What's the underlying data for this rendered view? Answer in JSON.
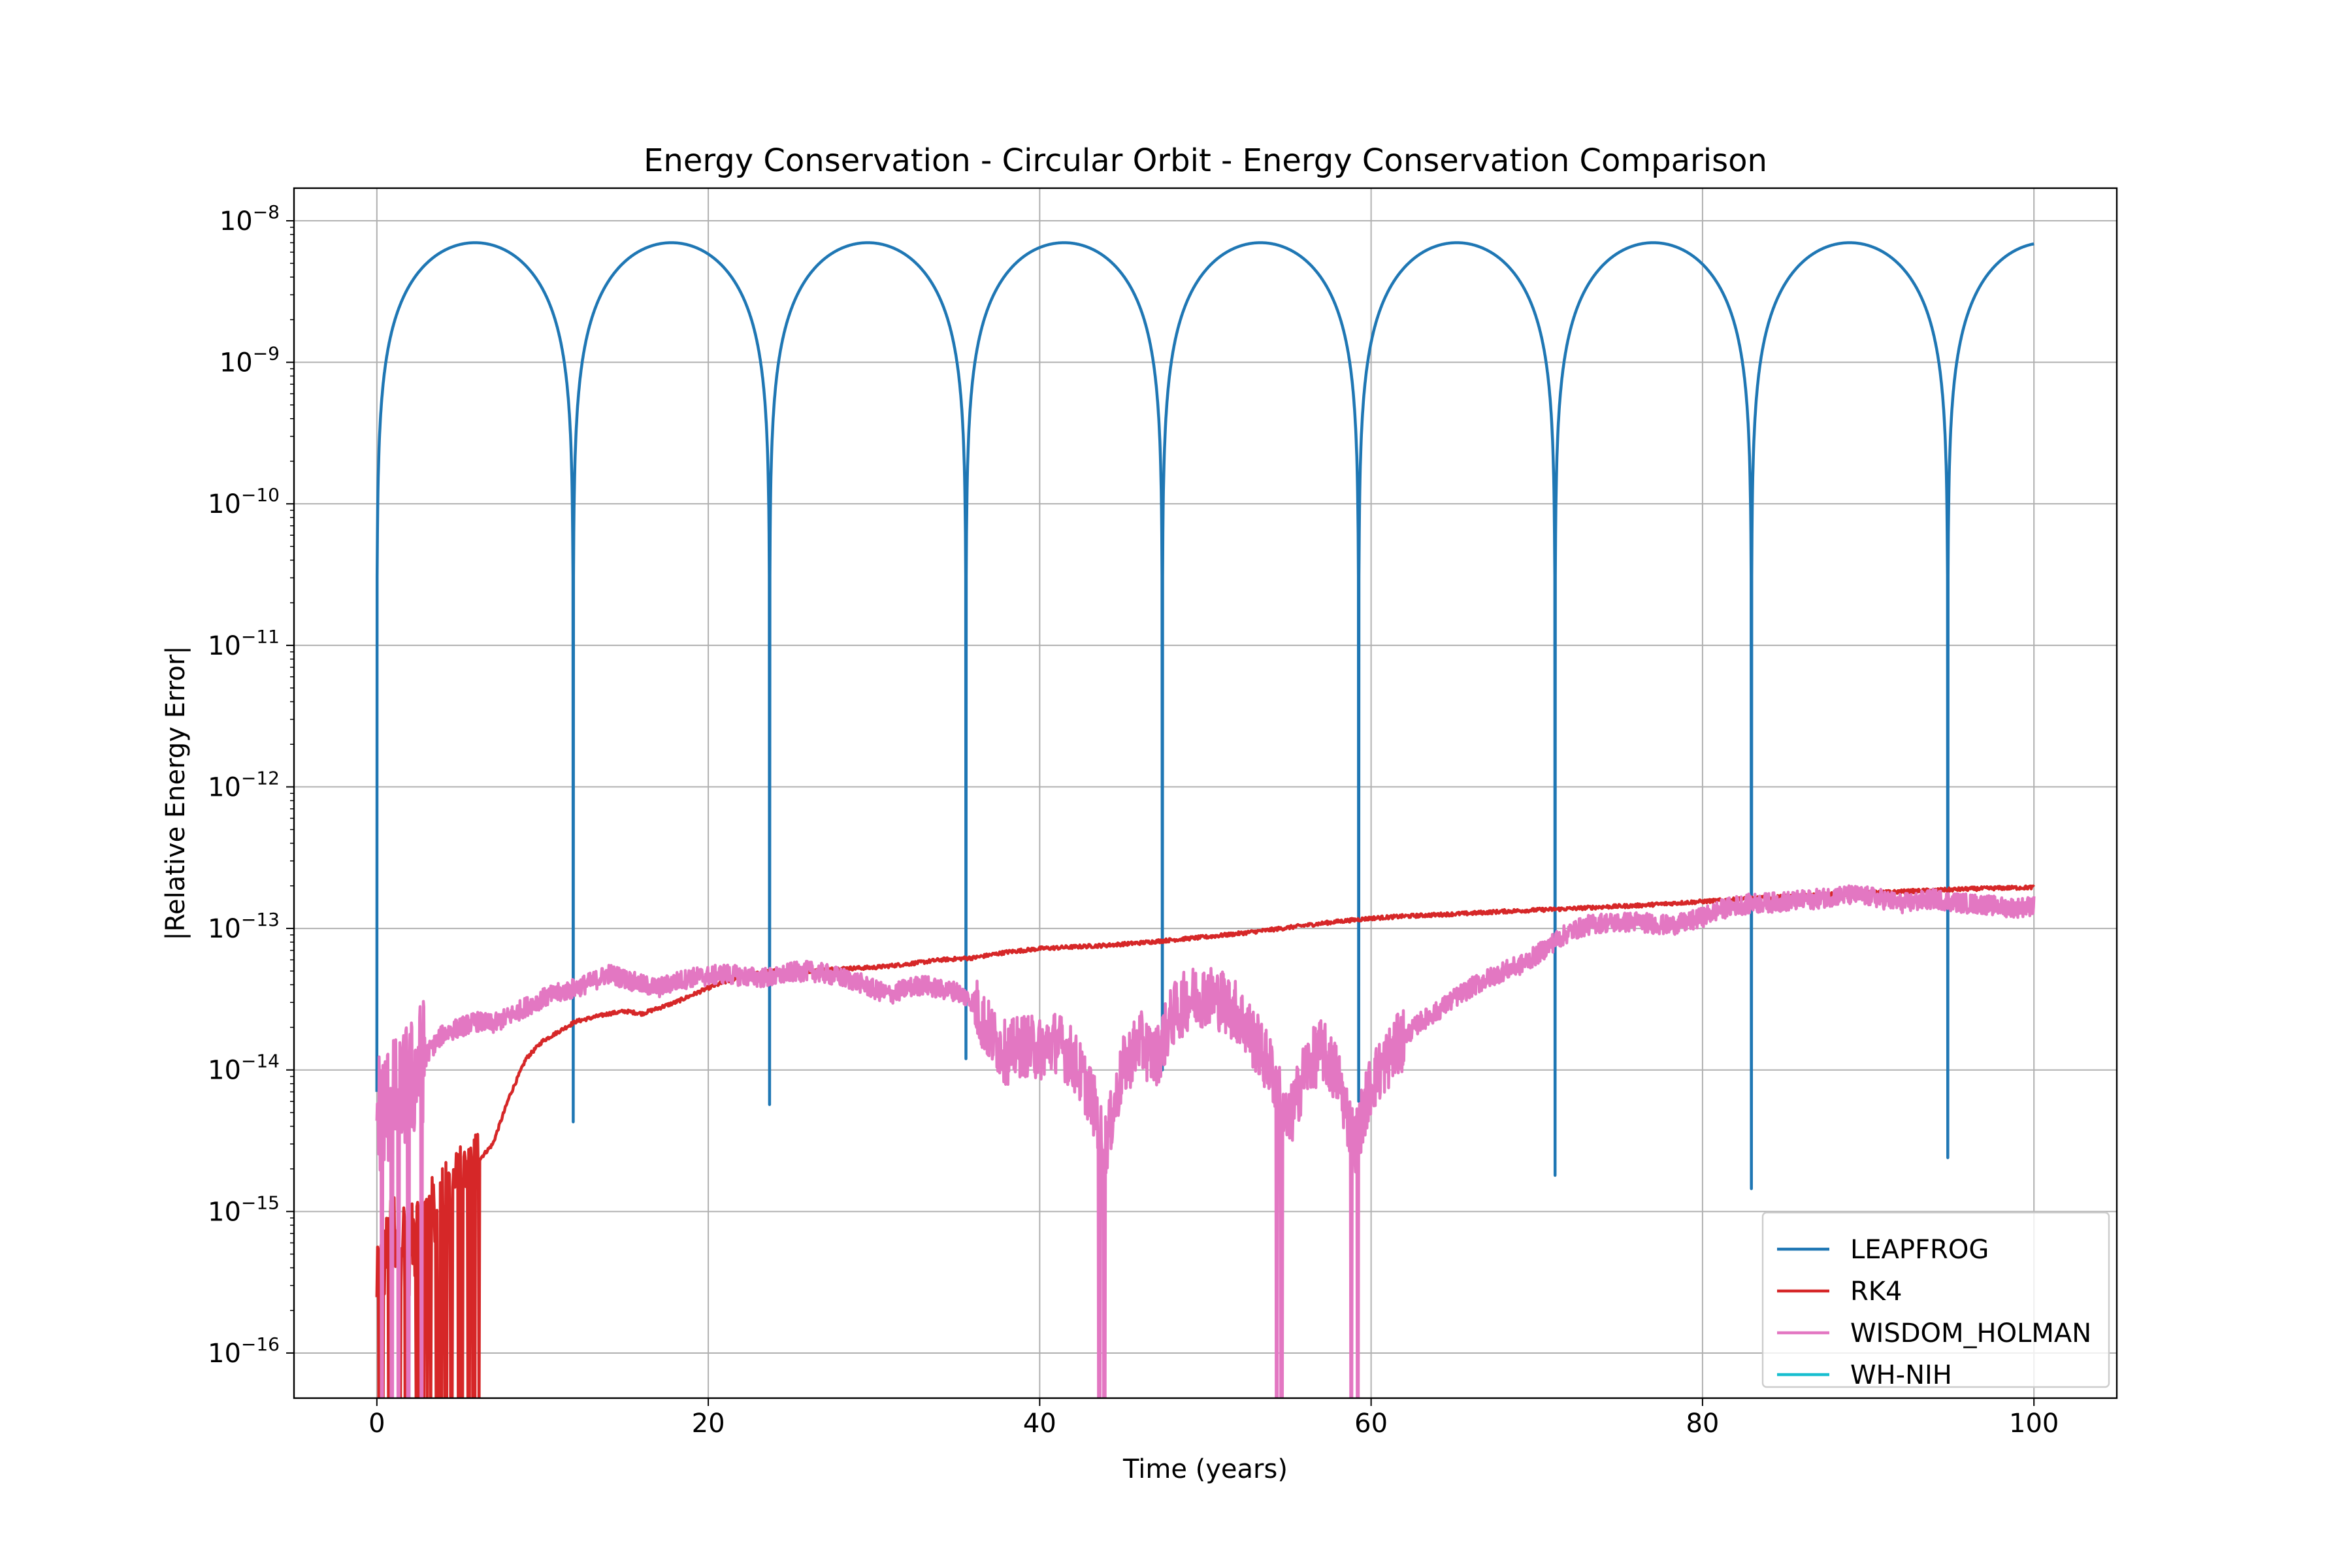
{
  "chart_data": {
    "type": "line",
    "title": "Energy Conservation - Circular Orbit - Energy Conservation Comparison",
    "xlabel": "Time (years)",
    "ylabel": "|Relative Energy Error|",
    "xscale": "linear",
    "yscale": "log",
    "xlim": [
      -5,
      105
    ],
    "ylim": [
      4.8e-17,
      1.7e-08
    ],
    "x_ticks": [
      0,
      20,
      40,
      60,
      80,
      100
    ],
    "x_tick_labels": [
      "0",
      "20",
      "40",
      "60",
      "80",
      "100"
    ],
    "y_ticks": [
      {
        "base": "10",
        "exp": "−16",
        "value": 1e-16
      },
      {
        "base": "10",
        "exp": "−15",
        "value": 1e-15
      },
      {
        "base": "10",
        "exp": "−14",
        "value": 1e-14
      },
      {
        "base": "10",
        "exp": "−13",
        "value": 1e-13
      },
      {
        "base": "10",
        "exp": "−12",
        "value": 1e-12
      },
      {
        "base": "10",
        "exp": "−11",
        "value": 1e-11
      },
      {
        "base": "10",
        "exp": "−10",
        "value": 1e-10
      },
      {
        "base": "10",
        "exp": "−9",
        "value": 1e-09
      },
      {
        "base": "10",
        "exp": "−8",
        "value": 1e-08
      }
    ],
    "grid": true,
    "legend_position": "lower-right",
    "series": [
      {
        "name": "LEAPFROG",
        "color": "#1f77b4",
        "model": "abs-sine",
        "period_years": 11.85,
        "peak": 7e-09,
        "floor": 1e-15,
        "dip_minima": [
          {
            "x": 0,
            "y": 7e-15
          },
          {
            "x": 11.85,
            "y": 4.3e-15
          },
          {
            "x": 23.7,
            "y": 5.7e-15
          },
          {
            "x": 35.55,
            "y": 1.2e-14
          },
          {
            "x": 47.4,
            "y": 1e-14
          },
          {
            "x": 59.25,
            "y": 6e-15
          },
          {
            "x": 71.1,
            "y": 1.8e-15
          },
          {
            "x": 82.95,
            "y": 1.45e-15
          },
          {
            "x": 94.8,
            "y": 2.4e-15
          }
        ],
        "end_x": 100,
        "end_y": 7e-09
      },
      {
        "name": "RK4",
        "color": "#d62728",
        "x": [
          0,
          1,
          2,
          3,
          4,
          5,
          6,
          7,
          8,
          9,
          10,
          12,
          14,
          15,
          16,
          18,
          20,
          22,
          24,
          26,
          28,
          30,
          32,
          34,
          36,
          38,
          40,
          42,
          44,
          46,
          48,
          50,
          52,
          54,
          56,
          58,
          60,
          62,
          64,
          66,
          68,
          70,
          72,
          74,
          76,
          78,
          80,
          82,
          84,
          86,
          88,
          90,
          92,
          94,
          96,
          98,
          100
        ],
        "y": [
          3e-16,
          8e-16,
          6e-16,
          9e-16,
          1.2e-15,
          1.6e-15,
          2.2e-15,
          3e-15,
          6.5e-15,
          1.2e-14,
          1.6e-14,
          2.2e-14,
          2.5e-14,
          2.6e-14,
          2.5e-14,
          3e-14,
          3.8e-14,
          4.6e-14,
          5e-14,
          5e-14,
          5.2e-14,
          5.3e-14,
          5.6e-14,
          6e-14,
          6.2e-14,
          6.8e-14,
          7.2e-14,
          7.4e-14,
          7.6e-14,
          7.9e-14,
          8.3e-14,
          8.7e-14,
          9.2e-14,
          9.8e-14,
          1.05e-13,
          1.12e-13,
          1.18e-13,
          1.22e-13,
          1.25e-13,
          1.28e-13,
          1.32e-13,
          1.35e-13,
          1.38e-13,
          1.42e-13,
          1.45e-13,
          1.5e-13,
          1.55e-13,
          1.6e-13,
          1.65e-13,
          1.7e-13,
          1.75e-13,
          1.78e-13,
          1.82e-13,
          1.86e-13,
          1.9e-13,
          1.93e-13,
          1.95e-13
        ],
        "noise_until_x": 6.2
      },
      {
        "name": "WISDOM_HOLMAN",
        "color": "#e377c2",
        "x": [
          0,
          1,
          2,
          3,
          4,
          5,
          6,
          7,
          8,
          9,
          10,
          11,
          12,
          13,
          14,
          15,
          16,
          17,
          18,
          19,
          20,
          21,
          22,
          23,
          24,
          25,
          26,
          27,
          28,
          29,
          30,
          31,
          32,
          33,
          34,
          35,
          36,
          37,
          38,
          39,
          40,
          41,
          42,
          43,
          44,
          45,
          46,
          47,
          48,
          49,
          50,
          51,
          52,
          53,
          54,
          55,
          56,
          57,
          58,
          59,
          60,
          61,
          62,
          63,
          64,
          65,
          66,
          67,
          68,
          69,
          70,
          71,
          72,
          73,
          74,
          75,
          76,
          77,
          78,
          79,
          80,
          81,
          82,
          83,
          84,
          85,
          86,
          87,
          88,
          89,
          90,
          91,
          92,
          93,
          94,
          95,
          96,
          97,
          98,
          99,
          100
        ],
        "y": [
          5e-15,
          6e-15,
          8e-15,
          1.3e-14,
          1.8e-14,
          2e-14,
          2.2e-14,
          2.1e-14,
          2.4e-14,
          2.8e-14,
          3.2e-14,
          3.5e-14,
          3.8e-14,
          4.2e-14,
          4.8e-14,
          4.4e-14,
          4e-14,
          3.8e-14,
          4.2e-14,
          4.5e-14,
          4.6e-14,
          4.8e-14,
          4.6e-14,
          4.5e-14,
          4.5e-14,
          4.9e-14,
          5e-14,
          4.8e-14,
          4.5e-14,
          4.2e-14,
          3.7e-14,
          3.4e-14,
          3.8e-14,
          4e-14,
          3.7e-14,
          3.6e-14,
          3e-14,
          1.8e-14,
          1.3e-14,
          1.5e-14,
          1.4e-14,
          1.6e-14,
          1.2e-14,
          7e-15,
          3e-15,
          1e-14,
          1.6e-14,
          1.2e-14,
          2.4e-14,
          3.2e-14,
          3.4e-14,
          3.1e-14,
          2.5e-14,
          1.6e-14,
          1e-14,
          4e-15,
          1e-14,
          1.4e-14,
          9e-15,
          3e-15,
          8e-15,
          1.2e-14,
          1.7e-14,
          2.2e-14,
          2.6e-14,
          3.2e-14,
          3.8e-14,
          4.4e-14,
          5e-14,
          5.5e-14,
          6.5e-14,
          8e-14,
          9.5e-14,
          1.05e-13,
          1.1e-13,
          1.1e-13,
          1.12e-13,
          1.08e-13,
          1.05e-13,
          1.1e-13,
          1.2e-13,
          1.35e-13,
          1.45e-13,
          1.5e-13,
          1.52e-13,
          1.55e-13,
          1.58e-13,
          1.62e-13,
          1.7e-13,
          1.72e-13,
          1.68e-13,
          1.6e-13,
          1.5e-13,
          1.55e-13,
          1.62e-13,
          1.55e-13,
          1.5e-13,
          1.48e-13,
          1.42e-13,
          1.4e-13,
          1.45e-13
        ],
        "deep_dips_x": [
          0.3,
          0.9,
          1.3,
          1.9,
          2.7,
          43.6,
          43.9,
          54.3,
          54.6,
          58.8,
          59.2
        ]
      },
      {
        "name": "WH-NIH",
        "color": "#17becf",
        "x": [],
        "y": []
      }
    ]
  }
}
